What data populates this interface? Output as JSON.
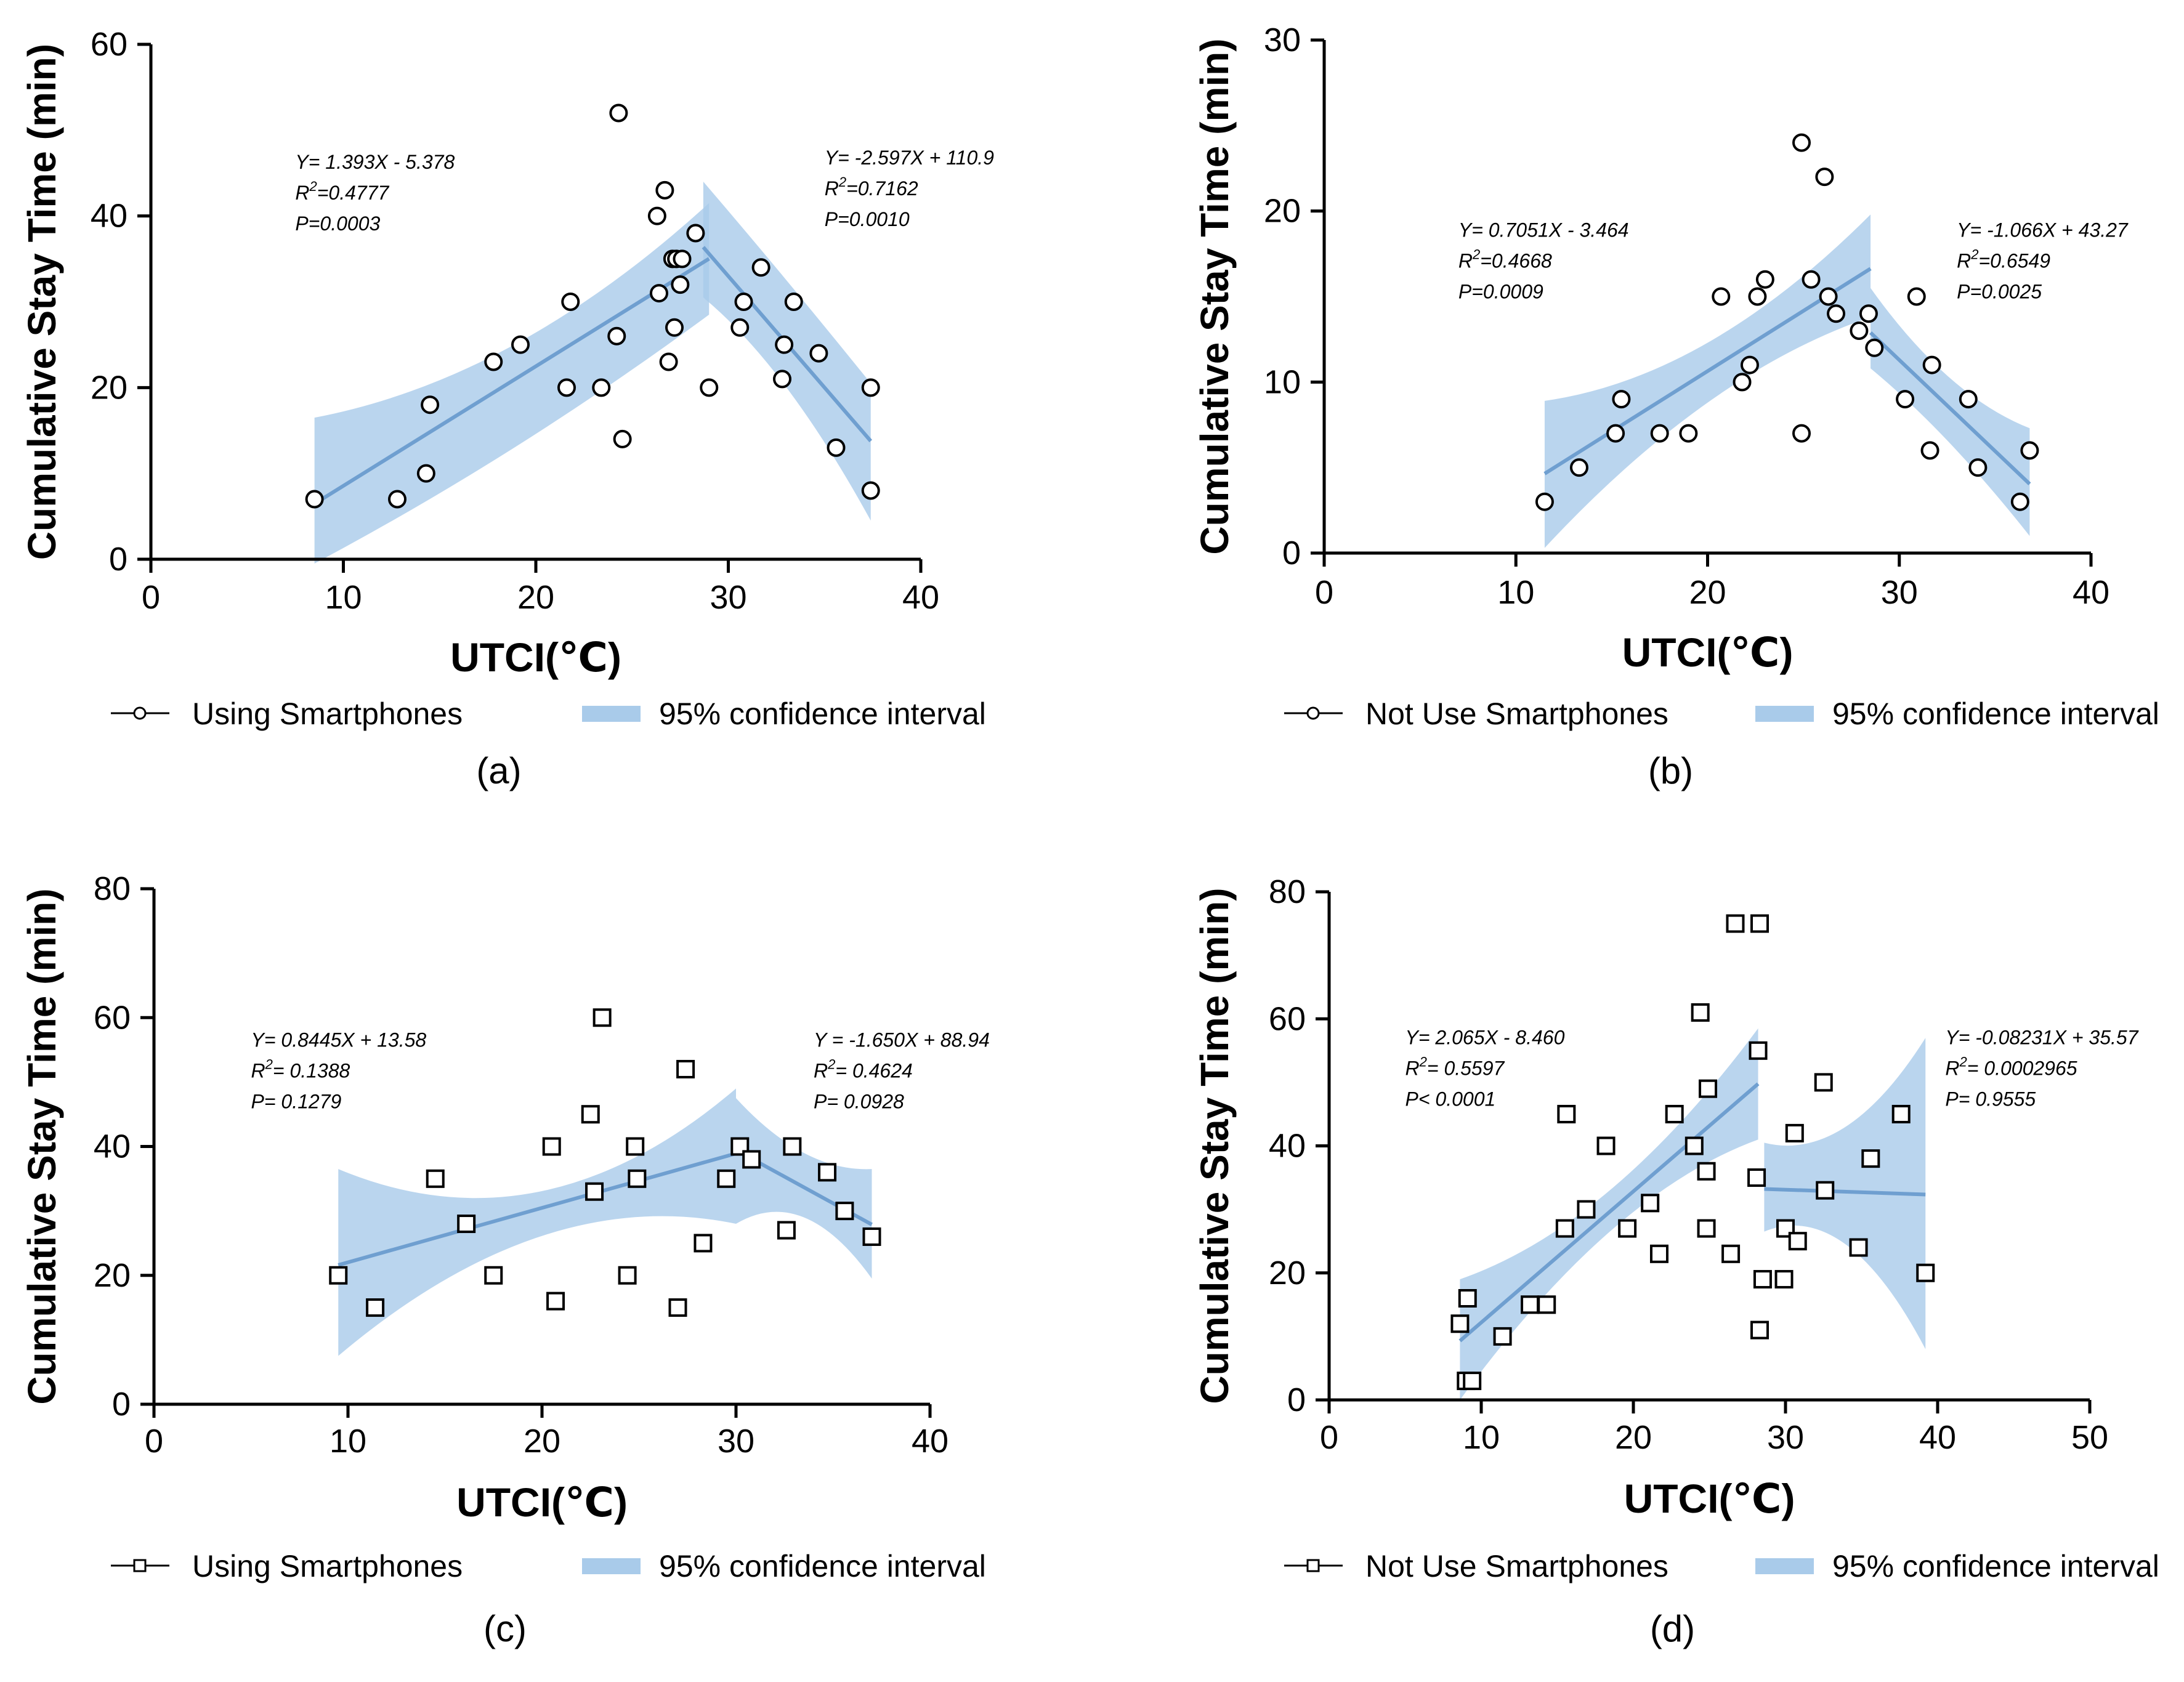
{
  "chart_data": [
    {
      "type": "scatter",
      "panel_label": "(a)",
      "title": "",
      "xlabel": "UTCI(℃)",
      "ylabel": "Cumulative Stay Time (min)",
      "xlim": [
        0,
        40
      ],
      "ylim": [
        0,
        60
      ],
      "xticks": [
        "0",
        "10",
        "20",
        "30",
        "40"
      ],
      "yticks": [
        "0",
        "20",
        "40",
        "60"
      ],
      "marker": "circle",
      "points": [
        [
          8.5,
          7
        ],
        [
          12.8,
          7
        ],
        [
          14.3,
          10
        ],
        [
          14.5,
          18
        ],
        [
          17.8,
          23
        ],
        [
          19.2,
          25
        ],
        [
          21.6,
          20
        ],
        [
          21.8,
          30
        ],
        [
          23.4,
          20
        ],
        [
          24.2,
          26
        ],
        [
          24.3,
          52
        ],
        [
          24.5,
          14
        ],
        [
          26.3,
          40
        ],
        [
          26.4,
          31
        ],
        [
          26.7,
          43
        ],
        [
          26.9,
          23
        ],
        [
          27.1,
          35
        ],
        [
          27.2,
          27
        ],
        [
          27.3,
          35
        ],
        [
          27.6,
          35
        ],
        [
          27.5,
          32
        ],
        [
          28.3,
          38
        ],
        [
          29,
          20
        ],
        [
          30.6,
          27
        ],
        [
          30.8,
          30
        ],
        [
          31.7,
          34
        ],
        [
          32.8,
          21
        ],
        [
          32.9,
          25
        ],
        [
          33.4,
          30
        ],
        [
          34.7,
          24
        ],
        [
          35.6,
          13
        ],
        [
          37.4,
          20
        ],
        [
          37.4,
          8
        ]
      ],
      "fits": [
        {
          "x_range": [
            8.5,
            29
          ],
          "slope": 1.393,
          "intercept": -5.378,
          "ci_low": [
            -0.5,
            13,
            28.5
          ],
          "ci_high": [
            16.5,
            25,
            41.5
          ],
          "ci_x": [
            8.5,
            19,
            29
          ]
        },
        {
          "x_range": [
            28.7,
            37.4
          ],
          "slope": -2.597,
          "intercept": 110.9,
          "ci_low": [
            30.5,
            20,
            4.5
          ],
          "ci_high": [
            44,
            32.5,
            20.5
          ],
          "ci_x": [
            28.7,
            33,
            37.4
          ]
        }
      ],
      "annotations": [
        {
          "line1": "Y= 1.393X - 5.378",
          "r2_value": "=0.4777",
          "p_text": "P=0.0003",
          "x": 7.5,
          "y": 45.5
        },
        {
          "line1": "Y= -2.597X + 110.9",
          "r2_value": "=0.7162",
          "p_text": "P=0.0010",
          "x": 35,
          "y": 46
        }
      ],
      "legend": {
        "series_label": "Using Smartphones",
        "ci_label": "95% confidence interval"
      }
    },
    {
      "type": "scatter",
      "panel_label": "(b)",
      "title": "",
      "xlabel": "UTCI(℃)",
      "ylabel": "Cumulative Stay Time (min)",
      "xlim": [
        0,
        40
      ],
      "ylim": [
        0,
        30
      ],
      "xticks": [
        "0",
        "10",
        "20",
        "30",
        "40"
      ],
      "yticks": [
        "0",
        "10",
        "20",
        "30"
      ],
      "marker": "circle",
      "points": [
        [
          11.5,
          3
        ],
        [
          13.3,
          5
        ],
        [
          15.2,
          7
        ],
        [
          15.5,
          9
        ],
        [
          17.5,
          7
        ],
        [
          19,
          7
        ],
        [
          20.7,
          15
        ],
        [
          21.8,
          10
        ],
        [
          22.2,
          11
        ],
        [
          22.6,
          15
        ],
        [
          23,
          16
        ],
        [
          24.9,
          7
        ],
        [
          24.9,
          24
        ],
        [
          25.4,
          16
        ],
        [
          26.1,
          22
        ],
        [
          26.3,
          15
        ],
        [
          26.7,
          14
        ],
        [
          27.9,
          13
        ],
        [
          28.4,
          14
        ],
        [
          28.7,
          12
        ],
        [
          30.3,
          9
        ],
        [
          30.9,
          15
        ],
        [
          31.6,
          6
        ],
        [
          31.7,
          11
        ],
        [
          33.6,
          9
        ],
        [
          34.1,
          5
        ],
        [
          36.3,
          3
        ],
        [
          36.8,
          6
        ]
      ],
      "fits": [
        {
          "x_range": [
            11.5,
            28.5
          ],
          "slope": 0.7051,
          "intercept": -3.464,
          "ci_low": [
            0.3,
            8.8,
            13.8
          ],
          "ci_high": [
            8.9,
            12.3,
            19.8
          ],
          "ci_x": [
            11.5,
            20,
            28.5
          ]
        },
        {
          "x_range": [
            28.5,
            36.8
          ],
          "slope": -1.066,
          "intercept": 43.27,
          "ci_low": [
            10.8,
            6.5,
            1
          ],
          "ci_high": [
            15.5,
            10.3,
            7.3
          ],
          "ci_x": [
            28.5,
            32.5,
            36.8
          ]
        }
      ],
      "annotations": [
        {
          "line1": "Y= 0.7051X - 3.464",
          "r2_value": "=0.4668",
          "p_text": "P=0.0009",
          "x": 7,
          "y": 18.5
        },
        {
          "line1": "Y= -1.066X + 43.27",
          "r2_value": "=0.6549",
          "p_text": "P=0.0025",
          "x": 33,
          "y": 18.5
        }
      ],
      "legend": {
        "series_label": "Not Use Smartphones",
        "ci_label": "95% confidence interval"
      }
    },
    {
      "type": "scatter",
      "panel_label": "(c)",
      "title": "",
      "xlabel": "UTCI(℃)",
      "ylabel": "Cumulative Stay Time (min)",
      "xlim": [
        0,
        40
      ],
      "ylim": [
        0,
        80
      ],
      "xticks": [
        "0",
        "10",
        "20",
        "30",
        "40"
      ],
      "yticks": [
        "0",
        "20",
        "40",
        "60",
        "80"
      ],
      "marker": "square",
      "points": [
        [
          9.5,
          20
        ],
        [
          11.4,
          15
        ],
        [
          14.5,
          35
        ],
        [
          16.1,
          28
        ],
        [
          17.5,
          20
        ],
        [
          20.5,
          40
        ],
        [
          20.7,
          16
        ],
        [
          22.5,
          45
        ],
        [
          22.7,
          33
        ],
        [
          23.1,
          60
        ],
        [
          24.4,
          20
        ],
        [
          24.8,
          40
        ],
        [
          24.9,
          35
        ],
        [
          27,
          15
        ],
        [
          27.4,
          52
        ],
        [
          28.3,
          25
        ],
        [
          29.5,
          35
        ],
        [
          30.2,
          40
        ],
        [
          30.8,
          38
        ],
        [
          32.6,
          27
        ],
        [
          32.9,
          40
        ],
        [
          34.7,
          36
        ],
        [
          35.6,
          30
        ],
        [
          37,
          26
        ]
      ],
      "fits": [
        {
          "x_range": [
            9.5,
            30
          ],
          "slope": 0.8445,
          "intercept": 13.58,
          "ci_low": [
            7.5,
            26,
            28
          ],
          "ci_high": [
            36.5,
            33,
            49
          ],
          "ci_x": [
            9.5,
            20,
            30
          ]
        },
        {
          "x_range": [
            30,
            37
          ],
          "slope": -1.65,
          "intercept": 88.94,
          "ci_low": [
            28,
            29,
            19.5
          ],
          "ci_high": [
            47.5,
            39,
            36.5
          ],
          "ci_x": [
            30,
            33.5,
            37
          ]
        }
      ],
      "annotations": [
        {
          "line1": "Y=  0.8445X + 13.58",
          "r2_value": "= 0.1388",
          "p_text": "P= 0.1279",
          "x": 5,
          "y": 55.5
        },
        {
          "line1": "Y = -1.650X + 88.94",
          "r2_value": "= 0.4624",
          "p_text": "P= 0.0928",
          "x": 34,
          "y": 55.5
        }
      ],
      "legend": {
        "series_label": "Using Smartphones",
        "ci_label": "95% confidence interval"
      }
    },
    {
      "type": "scatter",
      "panel_label": "(d)",
      "title": "",
      "xlabel": "UTCI(℃)",
      "ylabel": "Cumulative Stay Time (min)",
      "xlim": [
        0,
        50
      ],
      "ylim": [
        0,
        80
      ],
      "xticks": [
        "0",
        "10",
        "20",
        "30",
        "40",
        "50"
      ],
      "yticks": [
        "0",
        "20",
        "40",
        "60",
        "80"
      ],
      "marker": "square",
      "points": [
        [
          8.6,
          12
        ],
        [
          9,
          3
        ],
        [
          9.1,
          16
        ],
        [
          9.4,
          3
        ],
        [
          11.4,
          10
        ],
        [
          13.2,
          15
        ],
        [
          14.3,
          15
        ],
        [
          15.5,
          27
        ],
        [
          15.6,
          45
        ],
        [
          16.9,
          30
        ],
        [
          18.2,
          40
        ],
        [
          19.6,
          27
        ],
        [
          21.1,
          31
        ],
        [
          21.7,
          23
        ],
        [
          22.7,
          45
        ],
        [
          24,
          40
        ],
        [
          24.4,
          61
        ],
        [
          24.8,
          36
        ],
        [
          24.8,
          27
        ],
        [
          24.9,
          49
        ],
        [
          26.4,
          23
        ],
        [
          26.7,
          75
        ],
        [
          28.1,
          35
        ],
        [
          28.2,
          55
        ],
        [
          28.3,
          11
        ],
        [
          28.3,
          75
        ],
        [
          28.5,
          19
        ],
        [
          29.9,
          19
        ],
        [
          30,
          27
        ],
        [
          30.6,
          42
        ],
        [
          30.8,
          25
        ],
        [
          32.5,
          50
        ],
        [
          32.6,
          33
        ],
        [
          34.8,
          24
        ],
        [
          35.6,
          38
        ],
        [
          37.6,
          45
        ],
        [
          39.2,
          20
        ]
      ],
      "fits": [
        {
          "x_range": [
            8.6,
            28.2
          ],
          "slope": 2.065,
          "intercept": -8.46,
          "ci_low": [
            0,
            26.5,
            41
          ],
          "ci_high": [
            19,
            33,
            58.5
          ],
          "ci_x": [
            8.6,
            18.5,
            28.2
          ]
        },
        {
          "x_range": [
            28.6,
            39.2
          ],
          "slope": -0.08231,
          "intercept": 35.57,
          "ci_low": [
            26.5,
            24.5,
            8
          ],
          "ci_high": [
            40.5,
            43,
            57
          ],
          "ci_x": [
            28.6,
            34,
            39.2
          ]
        }
      ],
      "annotations": [
        {
          "line1": "Y= 2.065X - 8.460",
          "r2_value": "= 0.5597",
          "p_text": "P< 0.0001",
          "x": 5,
          "y": 56
        },
        {
          "line1": "Y= -0.08231X + 35.57",
          "r2_value": "= 0.0002965",
          "p_text": "P= 0.9555",
          "x": 40.5,
          "y": 56
        }
      ],
      "legend": {
        "series_label": "Not Use Smartphones",
        "ci_label": "95% confidence interval"
      }
    }
  ],
  "colors": {
    "ci_fill": "#a9cbea",
    "fit_line": "#6f9fd0",
    "axis": "#000000",
    "marker_fill": "#ffffff"
  }
}
